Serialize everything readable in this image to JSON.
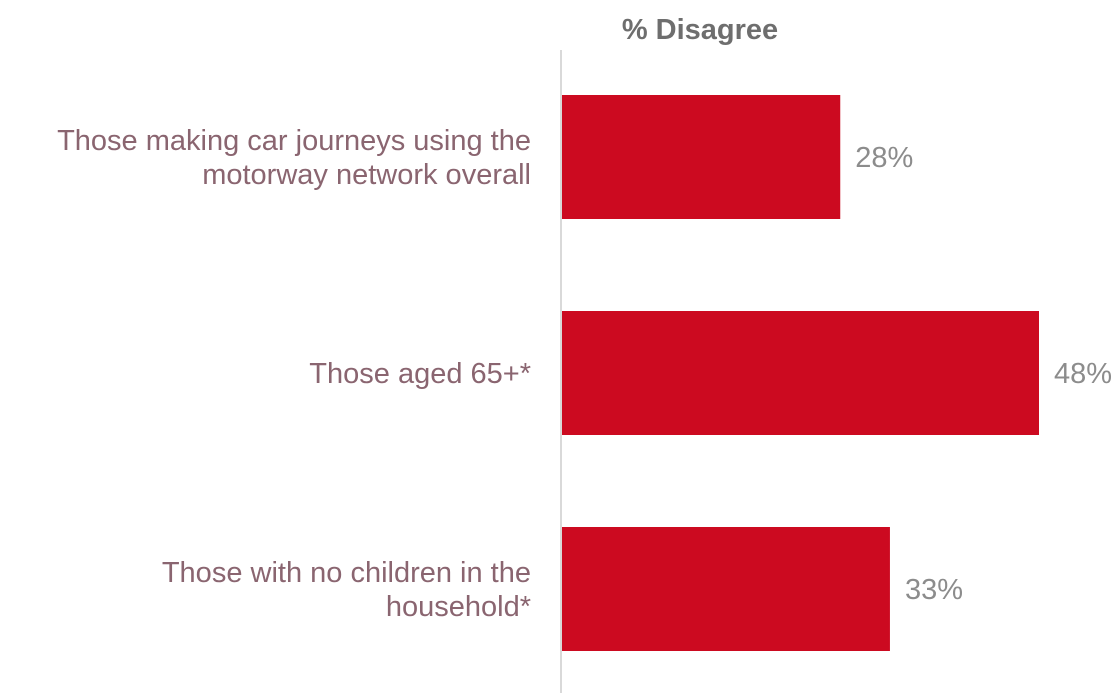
{
  "chart_data": {
    "type": "bar",
    "orientation": "horizontal",
    "title": "% Disagree",
    "xlabel": "",
    "ylabel": "",
    "categories": [
      [
        "Those making car journeys using the",
        "motorway network overall"
      ],
      [
        "Those aged 65+*"
      ],
      [
        "Those with no children in the",
        "household*"
      ]
    ],
    "values": [
      28,
      48,
      33
    ],
    "value_labels": [
      "28%",
      "48%",
      "33%"
    ],
    "xlim": [
      0,
      50
    ],
    "grid": false,
    "legend": "none",
    "bar_color": "#cc0a20"
  }
}
